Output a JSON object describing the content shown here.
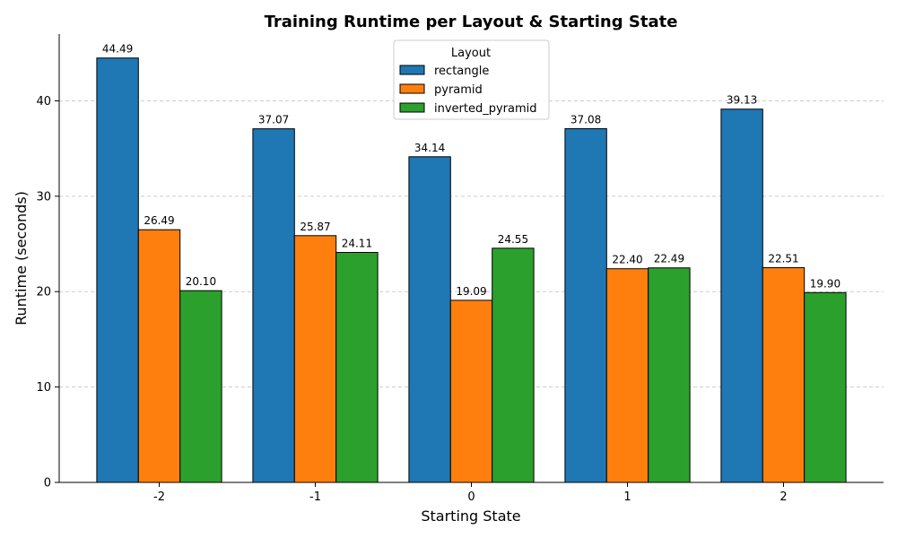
{
  "chart_data": {
    "type": "bar",
    "title": "Training Runtime per Layout & Starting State",
    "xlabel": "Starting State",
    "ylabel": "Runtime (seconds)",
    "categories": [
      "-2",
      "-1",
      "0",
      "1",
      "2"
    ],
    "ylim": [
      0,
      47
    ],
    "yticks": [
      0,
      10,
      20,
      30,
      40
    ],
    "grid": "horizontal dashed",
    "legend": {
      "title": "Layout",
      "position": "top-center"
    },
    "series": [
      {
        "name": "rectangle",
        "color": "#1f77b4",
        "values": [
          44.49,
          37.07,
          34.14,
          37.08,
          39.13
        ],
        "labels": [
          "44.49",
          "37.07",
          "34.14",
          "37.08",
          "39.13"
        ]
      },
      {
        "name": "pyramid",
        "color": "#ff7f0e",
        "values": [
          26.49,
          25.87,
          19.09,
          22.4,
          22.51
        ],
        "labels": [
          "26.49",
          "25.87",
          "19.09",
          "22.40",
          "22.51"
        ]
      },
      {
        "name": "inverted_pyramid",
        "color": "#2ca02c",
        "values": [
          20.1,
          24.11,
          24.55,
          22.49,
          19.9
        ],
        "labels": [
          "20.10",
          "24.11",
          "24.55",
          "22.49",
          "19.90"
        ]
      }
    ]
  }
}
